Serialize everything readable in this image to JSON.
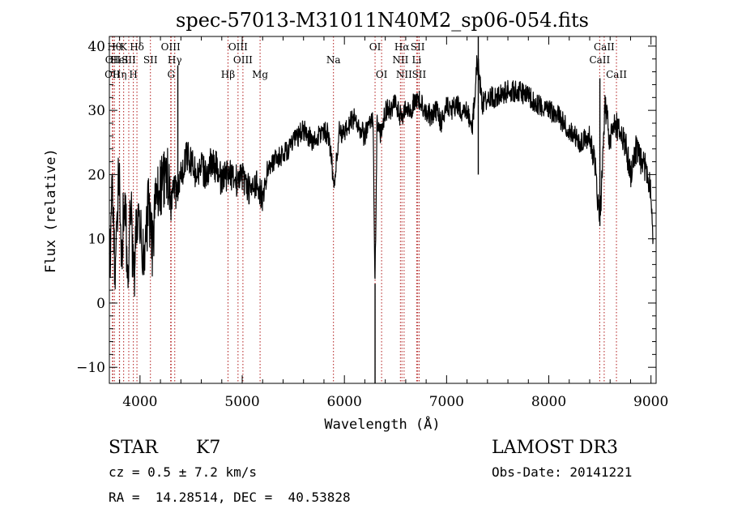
{
  "chart_data": {
    "type": "line",
    "title": "spec-57013-M31011N40M2_sp06-054.fits",
    "xlabel": "Wavelength (Å)",
    "ylabel": "Flux (relative)",
    "xlim": [
      3700,
      9050
    ],
    "ylim": [
      -12.5,
      41.5
    ],
    "x_ticks": [
      4000,
      5000,
      6000,
      7000,
      8000,
      9000
    ],
    "y_ticks": [
      -10,
      0,
      10,
      20,
      30,
      40
    ],
    "x_tick_labels": [
      "4000",
      "5000",
      "6000",
      "7000",
      "8000",
      "9000"
    ],
    "y_tick_labels": [
      "−10",
      "0",
      "10",
      "20",
      "30",
      "40"
    ],
    "series": [
      {
        "name": "flux",
        "x": [
          3700,
          3730,
          3760,
          3790,
          3820,
          3850,
          3880,
          3910,
          3940,
          3970,
          4000,
          4040,
          4080,
          4120,
          4160,
          4200,
          4240,
          4280,
          4300,
          4330,
          4360,
          4380,
          4420,
          4460,
          4500,
          4550,
          4600,
          4650,
          4700,
          4750,
          4800,
          4850,
          4900,
          4950,
          5000,
          5050,
          5100,
          5150,
          5200,
          5250,
          5300,
          5400,
          5500,
          5600,
          5700,
          5800,
          5850,
          5900,
          5950,
          6000,
          6050,
          6100,
          6150,
          6200,
          6250,
          6280,
          6300,
          6320,
          6350,
          6400,
          6450,
          6500,
          6550,
          6600,
          6650,
          6700,
          6750,
          6800,
          6850,
          6900,
          6950,
          7000,
          7050,
          7100,
          7150,
          7200,
          7250,
          7300,
          7350,
          7400,
          7500,
          7600,
          7700,
          7800,
          7900,
          8000,
          8100,
          8200,
          8300,
          8400,
          8450,
          8500,
          8550,
          8600,
          8650,
          8700,
          8750,
          8800,
          8850,
          8900,
          8950,
          9000,
          9020
        ],
        "values": [
          5,
          18,
          2,
          22,
          8,
          17,
          4,
          15,
          3,
          13,
          11,
          6,
          15,
          9,
          16,
          18,
          19,
          20,
          14,
          19,
          16,
          19,
          21,
          23,
          22,
          20,
          21,
          20,
          22,
          21,
          19,
          20,
          20,
          19,
          20,
          18,
          17,
          19,
          16,
          21,
          22,
          23,
          25,
          27,
          25,
          27,
          26,
          18,
          27,
          26,
          28,
          29,
          27,
          26,
          28,
          29,
          3,
          29,
          26,
          30,
          30,
          31,
          29,
          30,
          30,
          32,
          31,
          30,
          29,
          30,
          28,
          31,
          30,
          31,
          29,
          30,
          27,
          38,
          31,
          32,
          32,
          33,
          33,
          32,
          31,
          30,
          29,
          27,
          25,
          26,
          22,
          12,
          31,
          25,
          28,
          26,
          25,
          20,
          24,
          22,
          21,
          18,
          10
        ]
      }
    ],
    "absorption_features": [
      {
        "x": 6300,
        "y": -13
      },
      {
        "x": 7310,
        "y": 20
      }
    ],
    "emission_features": [
      {
        "x": 4370,
        "y": 37
      },
      {
        "x": 7310,
        "y": 42
      },
      {
        "x": 8500,
        "y": 35
      }
    ],
    "line_markers": [
      {
        "x": 3750,
        "row": 0,
        "label": "Hθ"
      },
      {
        "x": 3735,
        "row": 1,
        "label": "OII"
      },
      {
        "x": 3730,
        "row": 2,
        "label": "OII"
      },
      {
        "x": 3798,
        "row": 1,
        "label": "HeI"
      },
      {
        "x": 3800,
        "row": 2,
        "label": "Hη"
      },
      {
        "x": 3840,
        "row": 0,
        "label": "K"
      },
      {
        "x": 3890,
        "row": 1,
        "label": "SII"
      },
      {
        "x": 3935,
        "row": 2,
        "label": "H"
      },
      {
        "x": 3970,
        "row": 0,
        "label": "Hδ"
      },
      {
        "x": 4102,
        "row": 1,
        "label": "SII"
      },
      {
        "x": 4300,
        "row": 0,
        "label": "OIII"
      },
      {
        "x": 4340,
        "row": 1,
        "label": "Hγ"
      },
      {
        "x": 4305,
        "row": 2,
        "label": "G"
      },
      {
        "x": 4861,
        "row": 2,
        "label": "Hβ"
      },
      {
        "x": 4959,
        "row": 0,
        "label": "OIII"
      },
      {
        "x": 5007,
        "row": 1,
        "label": "OIII"
      },
      {
        "x": 5175,
        "row": 2,
        "label": "Mg"
      },
      {
        "x": 5893,
        "row": 1,
        "label": "Na"
      },
      {
        "x": 6300,
        "row": 0,
        "label": "OI"
      },
      {
        "x": 6364,
        "row": 2,
        "label": "OI"
      },
      {
        "x": 6563,
        "row": 0,
        "label": "Hα"
      },
      {
        "x": 6548,
        "row": 1,
        "label": "NII"
      },
      {
        "x": 6584,
        "row": 2,
        "label": "NII"
      },
      {
        "x": 6717,
        "row": 0,
        "label": "SII"
      },
      {
        "x": 6707,
        "row": 1,
        "label": "Li"
      },
      {
        "x": 6731,
        "row": 2,
        "label": "SII"
      },
      {
        "x": 8498,
        "row": 1,
        "label": "CaII"
      },
      {
        "x": 8542,
        "row": 0,
        "label": "CaII"
      },
      {
        "x": 8662,
        "row": 2,
        "label": "CaII"
      }
    ]
  },
  "info": {
    "object_class": "STAR",
    "subclass": "K7",
    "survey": "LAMOST DR3",
    "redshift": "cz = 0.5 ± 7.2 km/s",
    "obs_date": "Obs-Date: 20141221",
    "coords": "RA =  14.28514, DEC =  40.53828"
  }
}
